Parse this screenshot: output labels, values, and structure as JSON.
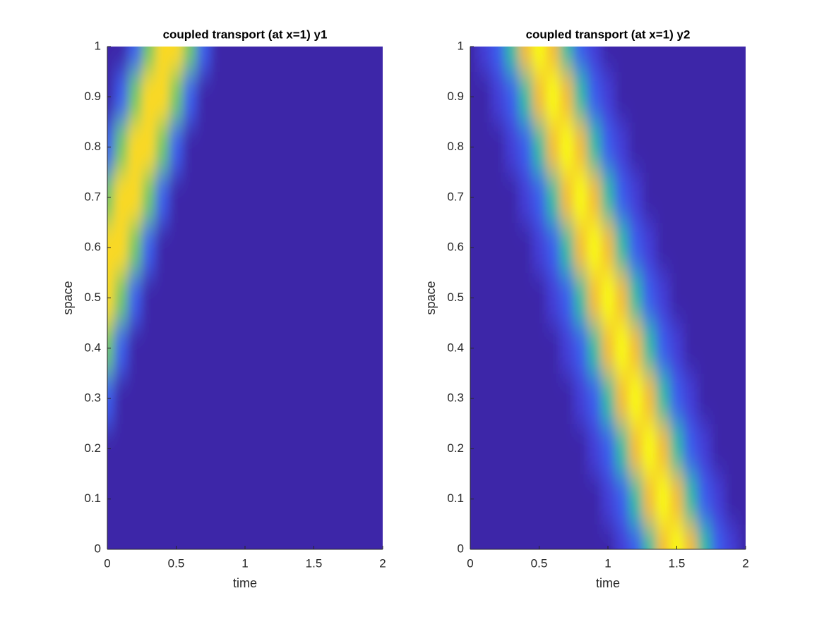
{
  "chart_data": [
    {
      "type": "heatmap",
      "title": "coupled transport (at x=1) y1",
      "xlabel": "time",
      "ylabel": "space",
      "xlim": [
        0,
        2
      ],
      "ylim": [
        0,
        1
      ],
      "xticks": [
        0,
        0.5,
        1,
        1.5,
        2
      ],
      "yticks": [
        0,
        0.1,
        0.2,
        0.3,
        0.4,
        0.5,
        0.6,
        0.7,
        0.8,
        0.9,
        1
      ],
      "x": [
        0,
        0.1,
        0.2,
        0.3,
        0.4,
        0.5,
        0.6,
        0.7,
        0.8,
        0.9,
        1,
        1.1,
        1.2,
        1.3,
        1.4,
        1.5,
        1.6,
        1.7,
        1.8,
        1.9,
        2
      ],
      "y": [
        0,
        0.1,
        0.2,
        0.3,
        0.4,
        0.5,
        0.6,
        0.7,
        0.8,
        0.9,
        1
      ],
      "z": [
        [
          0,
          0,
          0,
          0,
          0,
          0,
          0,
          0,
          0,
          0,
          0,
          0,
          0,
          0,
          0,
          0,
          0,
          0,
          0,
          0,
          0
        ],
        [
          0,
          0,
          0,
          0,
          0,
          0,
          0,
          0,
          0,
          0,
          0,
          0,
          0,
          0,
          0,
          0,
          0,
          0,
          0,
          0,
          0
        ],
        [
          0,
          0,
          0,
          0,
          0,
          0,
          0,
          0,
          0,
          0,
          0,
          0,
          0,
          0,
          0,
          0,
          0,
          0,
          0,
          0,
          0
        ],
        [
          0.2,
          0,
          0,
          0,
          0,
          0,
          0,
          0,
          0,
          0,
          0,
          0,
          0,
          0,
          0,
          0,
          0,
          0,
          0,
          0,
          0
        ],
        [
          0.6,
          0.2,
          0,
          0,
          0,
          0,
          0,
          0,
          0,
          0,
          0,
          0,
          0,
          0,
          0,
          0,
          0,
          0,
          0,
          0,
          0
        ],
        [
          0.9,
          0.6,
          0.2,
          0,
          0,
          0,
          0,
          0,
          0,
          0,
          0,
          0,
          0,
          0,
          0,
          0,
          0,
          0,
          0,
          0,
          0
        ],
        [
          0.9,
          0.9,
          0.6,
          0.2,
          0,
          0,
          0,
          0,
          0,
          0,
          0,
          0,
          0,
          0,
          0,
          0,
          0,
          0,
          0,
          0,
          0
        ],
        [
          0.6,
          0.9,
          0.9,
          0.6,
          0.2,
          0,
          0,
          0,
          0,
          0,
          0,
          0,
          0,
          0,
          0,
          0,
          0,
          0,
          0,
          0,
          0
        ],
        [
          0.2,
          0.6,
          0.9,
          0.9,
          0.6,
          0.2,
          0,
          0,
          0,
          0,
          0,
          0,
          0,
          0,
          0,
          0,
          0,
          0,
          0,
          0,
          0
        ],
        [
          0,
          0.2,
          0.6,
          0.9,
          0.9,
          0.6,
          0.2,
          0,
          0,
          0,
          0,
          0,
          0,
          0,
          0,
          0,
          0,
          0,
          0,
          0,
          0
        ],
        [
          0,
          0,
          0.2,
          0.6,
          0.9,
          0.9,
          0.6,
          0.2,
          0,
          0,
          0,
          0,
          0,
          0,
          0,
          0,
          0,
          0,
          0,
          0,
          0
        ]
      ]
    },
    {
      "type": "heatmap",
      "title": "coupled transport (at x=1) y2",
      "xlabel": "time",
      "ylabel": "space",
      "xlim": [
        0,
        2
      ],
      "ylim": [
        0,
        1
      ],
      "xticks": [
        0,
        0.5,
        1,
        1.5,
        2
      ],
      "yticks": [
        0,
        0.1,
        0.2,
        0.3,
        0.4,
        0.5,
        0.6,
        0.7,
        0.8,
        0.9,
        1
      ],
      "x": [
        0,
        0.1,
        0.2,
        0.3,
        0.4,
        0.5,
        0.6,
        0.7,
        0.8,
        0.9,
        1,
        1.1,
        1.2,
        1.3,
        1.4,
        1.5,
        1.6,
        1.7,
        1.8,
        1.9,
        2
      ],
      "y": [
        0,
        0.1,
        0.2,
        0.3,
        0.4,
        0.5,
        0.6,
        0.7,
        0.8,
        0.9,
        1
      ],
      "z": [
        [
          0,
          0,
          0,
          0,
          0,
          0,
          0,
          0,
          0,
          0,
          0,
          0.1,
          0.2,
          0.5,
          0.8,
          1,
          0.8,
          0.5,
          0.2,
          0.1,
          0
        ],
        [
          0,
          0,
          0,
          0,
          0,
          0,
          0,
          0,
          0,
          0,
          0.1,
          0.2,
          0.5,
          0.8,
          1,
          0.8,
          0.5,
          0.2,
          0.1,
          0,
          0
        ],
        [
          0,
          0,
          0,
          0,
          0,
          0,
          0,
          0,
          0,
          0.1,
          0.2,
          0.5,
          0.8,
          1,
          0.8,
          0.5,
          0.2,
          0.1,
          0,
          0,
          0
        ],
        [
          0,
          0,
          0,
          0,
          0,
          0,
          0,
          0,
          0.1,
          0.2,
          0.5,
          0.8,
          1,
          0.8,
          0.5,
          0.2,
          0.1,
          0,
          0,
          0,
          0
        ],
        [
          0,
          0,
          0,
          0,
          0,
          0,
          0,
          0.1,
          0.2,
          0.5,
          0.8,
          1,
          0.8,
          0.5,
          0.2,
          0.1,
          0,
          0,
          0,
          0,
          0
        ],
        [
          0,
          0,
          0,
          0,
          0,
          0,
          0.1,
          0.2,
          0.5,
          0.8,
          1,
          0.8,
          0.5,
          0.2,
          0.1,
          0,
          0,
          0,
          0,
          0,
          0
        ],
        [
          0,
          0,
          0,
          0,
          0,
          0.1,
          0.2,
          0.5,
          0.8,
          1,
          0.8,
          0.5,
          0.2,
          0.1,
          0,
          0,
          0,
          0,
          0,
          0,
          0
        ],
        [
          0,
          0,
          0,
          0,
          0.1,
          0.2,
          0.5,
          0.8,
          1,
          0.8,
          0.5,
          0.2,
          0.1,
          0,
          0,
          0,
          0,
          0,
          0,
          0,
          0
        ],
        [
          0,
          0,
          0,
          0.1,
          0.2,
          0.5,
          0.8,
          1,
          0.8,
          0.5,
          0.2,
          0.1,
          0,
          0,
          0,
          0,
          0,
          0,
          0,
          0,
          0
        ],
        [
          0,
          0,
          0.1,
          0.2,
          0.5,
          0.8,
          1,
          0.8,
          0.5,
          0.2,
          0.1,
          0,
          0,
          0,
          0,
          0,
          0,
          0,
          0,
          0,
          0
        ],
        [
          0,
          0.1,
          0.2,
          0.5,
          0.8,
          1,
          0.8,
          0.5,
          0.2,
          0.1,
          0,
          0,
          0,
          0,
          0,
          0,
          0,
          0,
          0,
          0,
          0
        ]
      ]
    }
  ]
}
